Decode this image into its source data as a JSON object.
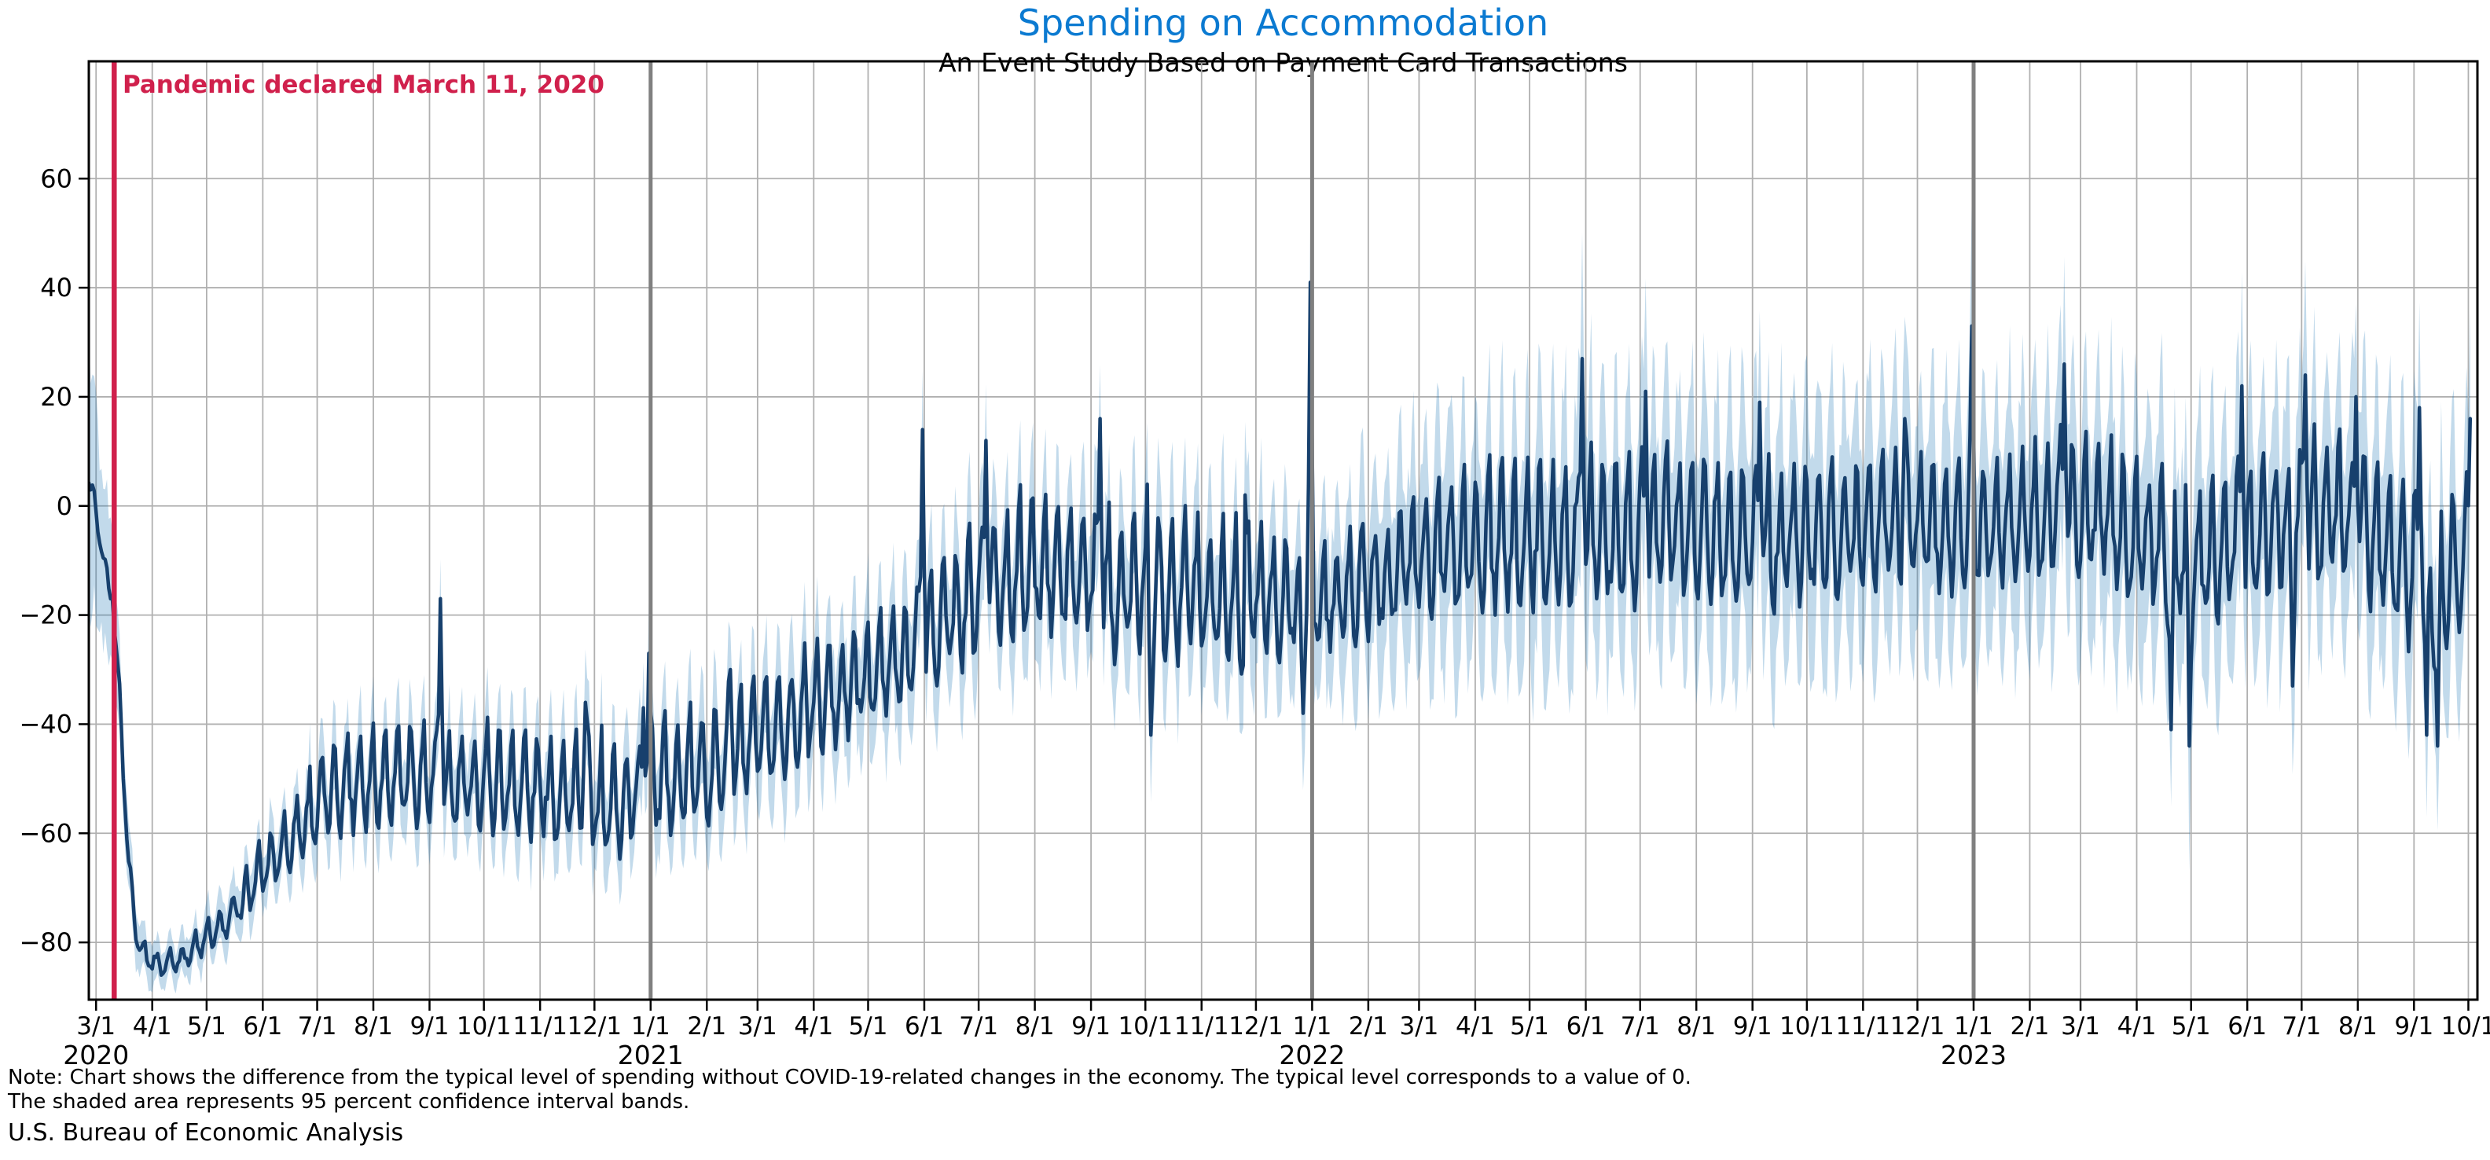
{
  "header": {
    "title": "Spending on Accommodation",
    "subtitle": "An Event Study Based on Payment Card Transactions"
  },
  "annotation": {
    "text": "Pandemic declared March 11, 2020",
    "date": "2020-03-11",
    "color": "#d0204c"
  },
  "notes": {
    "line1": "Note: Chart shows the difference from the typical level of spending without COVID-19-related changes in the economy. The typical level corresponds to a value of 0.",
    "line2": "The shaded area represents 95 percent confidence interval bands."
  },
  "source": "U.S. Bureau of Economic Analysis",
  "chart_data": {
    "type": "line",
    "title": "Spending on Accommodation",
    "subtitle": "An Event Study Based on Payment Card Transactions",
    "xlabel": "",
    "ylabel": "",
    "series_name": "Daily difference from typical spending level (0 = typical)",
    "band_series": "95 percent confidence interval band",
    "legend": "none",
    "grid": true,
    "ylim": [
      -90.5,
      81.5
    ],
    "yticks": [
      60,
      40,
      20,
      0,
      -20,
      -40,
      -60,
      -80
    ],
    "x_domain": [
      "2020-02-26",
      "2023-10-06"
    ],
    "series_start": "2020-02-26",
    "series_end": "2023-10-02",
    "xticks": [
      {
        "l": "3/1",
        "d": "2020-03-01",
        "y": "2020"
      },
      {
        "l": "4/1",
        "d": "2020-04-01"
      },
      {
        "l": "5/1",
        "d": "2020-05-01"
      },
      {
        "l": "6/1",
        "d": "2020-06-01"
      },
      {
        "l": "7/1",
        "d": "2020-07-01"
      },
      {
        "l": "8/1",
        "d": "2020-08-01"
      },
      {
        "l": "9/1",
        "d": "2020-09-01"
      },
      {
        "l": "10/1",
        "d": "2020-10-01"
      },
      {
        "l": "11/1",
        "d": "2020-11-01"
      },
      {
        "l": "12/1",
        "d": "2020-12-01"
      },
      {
        "l": "1/1",
        "d": "2021-01-01",
        "y": "2021"
      },
      {
        "l": "2/1",
        "d": "2021-02-01"
      },
      {
        "l": "3/1",
        "d": "2021-03-01"
      },
      {
        "l": "4/1",
        "d": "2021-04-01"
      },
      {
        "l": "5/1",
        "d": "2021-05-01"
      },
      {
        "l": "6/1",
        "d": "2021-06-01"
      },
      {
        "l": "7/1",
        "d": "2021-07-01"
      },
      {
        "l": "8/1",
        "d": "2021-08-01"
      },
      {
        "l": "9/1",
        "d": "2021-09-01"
      },
      {
        "l": "10/1",
        "d": "2021-10-01"
      },
      {
        "l": "11/1",
        "d": "2021-11-01"
      },
      {
        "l": "12/1",
        "d": "2021-12-01"
      },
      {
        "l": "1/1",
        "d": "2022-01-01",
        "y": "2022"
      },
      {
        "l": "2/1",
        "d": "2022-02-01"
      },
      {
        "l": "3/1",
        "d": "2022-03-01"
      },
      {
        "l": "4/1",
        "d": "2022-04-01"
      },
      {
        "l": "5/1",
        "d": "2022-05-01"
      },
      {
        "l": "6/1",
        "d": "2022-06-01"
      },
      {
        "l": "7/1",
        "d": "2022-07-01"
      },
      {
        "l": "8/1",
        "d": "2022-08-01"
      },
      {
        "l": "9/1",
        "d": "2022-09-01"
      },
      {
        "l": "10/1",
        "d": "2022-10-01"
      },
      {
        "l": "11/1",
        "d": "2022-11-01"
      },
      {
        "l": "12/1",
        "d": "2022-12-01"
      },
      {
        "l": "1/1",
        "d": "2023-01-01",
        "y": "2023"
      },
      {
        "l": "2/1",
        "d": "2023-02-01"
      },
      {
        "l": "3/1",
        "d": "2023-03-01"
      },
      {
        "l": "4/1",
        "d": "2023-04-01"
      },
      {
        "l": "5/1",
        "d": "2023-05-01"
      },
      {
        "l": "6/1",
        "d": "2023-06-01"
      },
      {
        "l": "7/1",
        "d": "2023-07-01"
      },
      {
        "l": "8/1",
        "d": "2023-08-01"
      },
      {
        "l": "9/1",
        "d": "2023-09-01"
      },
      {
        "l": "10/1",
        "d": "2023-10-01"
      }
    ],
    "event_lines": {
      "pandemic": "2020-03-11",
      "year_starts": [
        "2021-01-01",
        "2022-01-01",
        "2023-01-01"
      ]
    },
    "weekly_pattern": [
      -0.2,
      -0.8,
      -1.0,
      -0.6,
      0.0,
      0.7,
      1.0
    ],
    "anchor_format": [
      "date",
      "midline_value",
      "weekly_half_amplitude",
      "band_half_width"
    ],
    "anchors": [
      [
        "2020-02-26",
        5,
        2,
        22
      ],
      [
        "2020-03-01",
        -1,
        2,
        18
      ],
      [
        "2020-03-05",
        -10,
        2,
        15
      ],
      [
        "2020-03-08",
        -15,
        1.5,
        13
      ],
      [
        "2020-03-10",
        -16,
        1.5,
        11
      ],
      [
        "2020-03-12",
        -26,
        2,
        9
      ],
      [
        "2020-03-14",
        -34,
        2,
        8
      ],
      [
        "2020-03-16",
        -48,
        2,
        7
      ],
      [
        "2020-03-19",
        -65,
        2,
        6
      ],
      [
        "2020-03-23",
        -78,
        2,
        5
      ],
      [
        "2020-03-28",
        -82,
        2,
        4
      ],
      [
        "2020-04-05",
        -84,
        2,
        3.5
      ],
      [
        "2020-04-18",
        -82.5,
        2,
        3.5
      ],
      [
        "2020-05-01",
        -79,
        2.5,
        4
      ],
      [
        "2020-05-15",
        -75,
        3,
        4.5
      ],
      [
        "2020-06-01",
        -66,
        4.5,
        5
      ],
      [
        "2020-06-15",
        -61,
        5,
        5.5
      ],
      [
        "2020-07-01",
        -54,
        7,
        6.5
      ],
      [
        "2020-07-15",
        -50,
        8,
        7
      ],
      [
        "2020-08-01",
        -49,
        8,
        7.5
      ],
      [
        "2020-08-15",
        -48,
        8,
        7.5
      ],
      [
        "2020-09-01",
        -49,
        8,
        8
      ],
      [
        "2020-09-15",
        -51,
        8,
        8
      ],
      [
        "2020-10-01",
        -49,
        8.5,
        8
      ],
      [
        "2020-10-15",
        -50,
        9,
        8
      ],
      [
        "2020-11-01",
        -51,
        9,
        8
      ],
      [
        "2020-11-15",
        -51,
        9.5,
        8
      ],
      [
        "2020-12-01",
        -53,
        10,
        8
      ],
      [
        "2020-12-15",
        -54,
        9,
        8
      ],
      [
        "2021-01-01",
        -50,
        9,
        8.5
      ],
      [
        "2021-01-15",
        -49,
        9,
        9
      ],
      [
        "2021-02-01",
        -47,
        9,
        9
      ],
      [
        "2021-02-15",
        -45,
        9,
        9
      ],
      [
        "2021-03-01",
        -42,
        9,
        9
      ],
      [
        "2021-03-15",
        -39,
        9,
        9.5
      ],
      [
        "2021-04-01",
        -35,
        9,
        9.5
      ],
      [
        "2021-04-15",
        -33,
        9,
        10
      ],
      [
        "2021-05-01",
        -30,
        9.5,
        10
      ],
      [
        "2021-05-15",
        -28,
        9.5,
        10
      ],
      [
        "2021-06-01",
        -23,
        10,
        10
      ],
      [
        "2021-06-15",
        -19,
        10,
        10.5
      ],
      [
        "2021-07-01",
        -15,
        11,
        11
      ],
      [
        "2021-07-15",
        -12,
        11,
        11
      ],
      [
        "2021-08-01",
        -10,
        11,
        11
      ],
      [
        "2021-08-15",
        -11,
        11,
        11
      ],
      [
        "2021-09-01",
        -12,
        11,
        11
      ],
      [
        "2021-09-15",
        -15,
        11,
        11
      ],
      [
        "2021-10-01",
        -12,
        12,
        11.5
      ],
      [
        "2021-10-15",
        -13,
        12,
        11.5
      ],
      [
        "2021-11-01",
        -14,
        12,
        12
      ],
      [
        "2021-11-15",
        -15,
        12,
        12
      ],
      [
        "2021-12-01",
        -15,
        11,
        12
      ],
      [
        "2021-12-15",
        -16,
        10,
        12.5
      ],
      [
        "2022-01-01",
        -17,
        8,
        13
      ],
      [
        "2022-01-15",
        -16,
        8,
        13.5
      ],
      [
        "2022-02-01",
        -13,
        9,
        14.5
      ],
      [
        "2022-02-15",
        -11,
        10,
        15.5
      ],
      [
        "2022-03-01",
        -8,
        10,
        16.5
      ],
      [
        "2022-03-15",
        -7,
        11,
        17
      ],
      [
        "2022-04-01",
        -6,
        11,
        17.5
      ],
      [
        "2022-04-15",
        -6,
        12,
        18
      ],
      [
        "2022-05-01",
        -5,
        12,
        18
      ],
      [
        "2022-05-15",
        -5,
        12,
        18
      ],
      [
        "2022-06-01",
        -4,
        12,
        18.5
      ],
      [
        "2022-06-15",
        -4,
        12,
        18.5
      ],
      [
        "2022-07-01",
        -3,
        12,
        18.5
      ],
      [
        "2022-07-15",
        -2,
        12,
        18.5
      ],
      [
        "2022-08-01",
        -3,
        12,
        18.5
      ],
      [
        "2022-08-15",
        -3,
        12,
        18.5
      ],
      [
        "2022-09-01",
        -5,
        12,
        18.5
      ],
      [
        "2022-09-15",
        -6,
        11,
        18.5
      ],
      [
        "2022-10-01",
        -4,
        11,
        18.5
      ],
      [
        "2022-10-15",
        -4,
        11,
        18.5
      ],
      [
        "2022-11-01",
        -2,
        11,
        18.5
      ],
      [
        "2022-11-15",
        -1,
        11,
        18.5
      ],
      [
        "2022-12-01",
        -2,
        11,
        18.5
      ],
      [
        "2022-12-15",
        -3,
        11,
        18.5
      ],
      [
        "2023-01-01",
        -3,
        11,
        18.5
      ],
      [
        "2023-01-15",
        -3,
        11,
        18.5
      ],
      [
        "2023-02-01",
        -1,
        11,
        18.5
      ],
      [
        "2023-02-15",
        1,
        11,
        18.5
      ],
      [
        "2023-03-01",
        0,
        11,
        18.5
      ],
      [
        "2023-03-15",
        -1,
        11,
        18.5
      ],
      [
        "2023-04-01",
        -4,
        12,
        18.5
      ],
      [
        "2023-04-15",
        -7,
        12,
        18.5
      ],
      [
        "2023-05-01",
        -9,
        12,
        18.5
      ],
      [
        "2023-05-15",
        -7,
        12,
        18.5
      ],
      [
        "2023-06-01",
        -4,
        12,
        18.5
      ],
      [
        "2023-06-15",
        -3,
        12,
        18.5
      ],
      [
        "2023-07-01",
        -1,
        12,
        18.5
      ],
      [
        "2023-07-15",
        0,
        12,
        18.5
      ],
      [
        "2023-08-01",
        -2,
        12,
        18.5
      ],
      [
        "2023-08-15",
        -6,
        12,
        18.5
      ],
      [
        "2023-09-01",
        -11,
        13,
        18
      ],
      [
        "2023-09-15",
        -14,
        13,
        17.5
      ],
      [
        "2023-10-02",
        -6,
        12,
        17
      ]
    ],
    "event_format": [
      "date",
      "spike_or_dip_value"
    ],
    "events": [
      [
        "2020-09-07",
        -17
      ],
      [
        "2020-11-26",
        -36
      ],
      [
        "2020-12-28",
        -37
      ],
      [
        "2020-12-31",
        -27
      ],
      [
        "2021-02-14",
        -30
      ],
      [
        "2021-05-31",
        14
      ],
      [
        "2021-07-05",
        12
      ],
      [
        "2021-09-06",
        16
      ],
      [
        "2021-10-04",
        -42
      ],
      [
        "2021-11-24",
        -46
      ],
      [
        "2021-11-25",
        2
      ],
      [
        "2021-12-27",
        -38
      ],
      [
        "2021-12-31",
        41
      ],
      [
        "2022-05-30",
        27
      ],
      [
        "2022-07-04",
        21
      ],
      [
        "2022-09-05",
        19
      ],
      [
        "2022-11-24",
        16
      ],
      [
        "2022-12-31",
        33
      ],
      [
        "2023-02-20",
        26
      ],
      [
        "2023-04-20",
        -41
      ],
      [
        "2023-04-30",
        -44
      ],
      [
        "2023-05-29",
        22
      ],
      [
        "2023-06-26",
        -33
      ],
      [
        "2023-07-03",
        24
      ],
      [
        "2023-07-31",
        20
      ],
      [
        "2023-09-04",
        18
      ],
      [
        "2023-09-08",
        -42
      ],
      [
        "2023-09-14",
        -44
      ],
      [
        "2023-10-02",
        16
      ]
    ],
    "colors": {
      "line": "#17406d",
      "band_fill": "#1f77b4",
      "band_opacity": 0.27,
      "pandemic_line": "#d0204c",
      "year_line": "#808080",
      "grid": "#b0b0b0",
      "spine": "#000000",
      "title": "#0b7ad1"
    }
  }
}
